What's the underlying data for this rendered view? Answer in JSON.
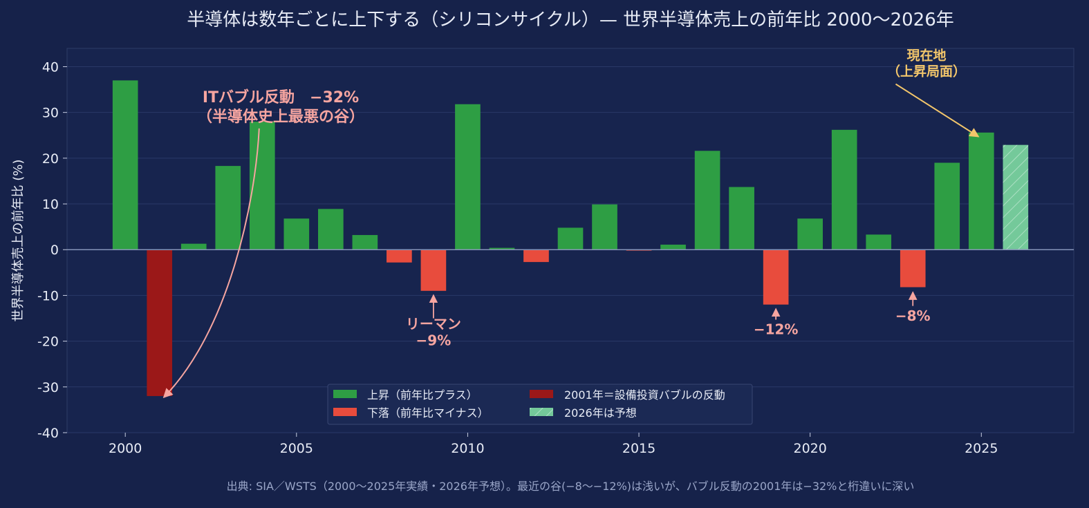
{
  "chart_data": {
    "type": "bar",
    "title": "半導体は数年ごとに上下する（シリコンサイクル）— 世界半導体売上の前年比 2000〜2026年",
    "ylabel": "世界半導体売上の前年比 (%)",
    "xlabel": "",
    "footer": "出典: SIA／WSTS（2000〜2025年実績・2026年予想）。最近の谷(−8〜−12%)は浅いが、バブル反動の2001年は−32%と桁違いに深い",
    "xlim": [
      1998.3,
      2027.7
    ],
    "ylim": [
      -40,
      44
    ],
    "x_ticks": [
      "2000",
      "2005",
      "2010",
      "2015",
      "2020",
      "2025"
    ],
    "y_ticks": [
      "40",
      "30",
      "20",
      "10",
      "0",
      "-10",
      "-20",
      "-30",
      "-40"
    ],
    "grid": true,
    "legend_position": "bottom-center",
    "colors": {
      "background": "#16224a",
      "up": "#2e9e44",
      "down": "#e84c3d",
      "bubble": "#9b1818",
      "forecast": "#74c99a",
      "annotation_red": "#f6a5a0",
      "annotation_gold": "#f3c66b"
    },
    "series": [
      {
        "x": [
          2000,
          2001,
          2002,
          2003,
          2004,
          2005,
          2006,
          2007,
          2008,
          2009,
          2010,
          2011,
          2012,
          2013,
          2014,
          2015,
          2016,
          2017,
          2018,
          2019,
          2020,
          2021,
          2022,
          2023,
          2024,
          2025,
          2026
        ],
        "values": [
          37,
          -32,
          1.3,
          18.3,
          28.0,
          6.8,
          8.9,
          3.2,
          -2.8,
          -9.0,
          31.8,
          0.4,
          -2.7,
          4.8,
          9.9,
          -0.2,
          1.1,
          21.6,
          13.7,
          -12.0,
          6.8,
          26.2,
          3.3,
          -8.2,
          19.0,
          25.6,
          22.9
        ],
        "kinds": [
          "up",
          "bubble",
          "up",
          "up",
          "up",
          "up",
          "up",
          "up",
          "down",
          "down",
          "up",
          "up",
          "down",
          "up",
          "up",
          "down",
          "up",
          "up",
          "up",
          "down",
          "up",
          "up",
          "up",
          "down",
          "up",
          "up",
          "forecast"
        ]
      }
    ],
    "legend": [
      {
        "label": "上昇（前年比プラス）",
        "kind": "up"
      },
      {
        "label": "下落（前年比マイナス）",
        "kind": "down"
      },
      {
        "label": "2001年＝設備投資バブルの反動",
        "kind": "bubble"
      },
      {
        "label": "2026年は予想",
        "kind": "forecast"
      }
    ],
    "annotations": [
      {
        "lines": [
          "ITバブル反動　−32%",
          "（半導体史上最悪の谷）"
        ],
        "x": 2001,
        "y": -32,
        "color": "annotation_red"
      },
      {
        "lines": [
          "リーマン",
          "−9%"
        ],
        "x": 2009,
        "y": -9,
        "color": "annotation_red"
      },
      {
        "lines": [
          "−12%"
        ],
        "x": 2019,
        "y": -12,
        "color": "annotation_red"
      },
      {
        "lines": [
          "−8%"
        ],
        "x": 2023,
        "y": -8.2,
        "color": "annotation_red"
      },
      {
        "lines": [
          "現在地",
          "（上昇局面）"
        ],
        "x": 2025,
        "y": 25.6,
        "color": "annotation_gold"
      }
    ]
  }
}
